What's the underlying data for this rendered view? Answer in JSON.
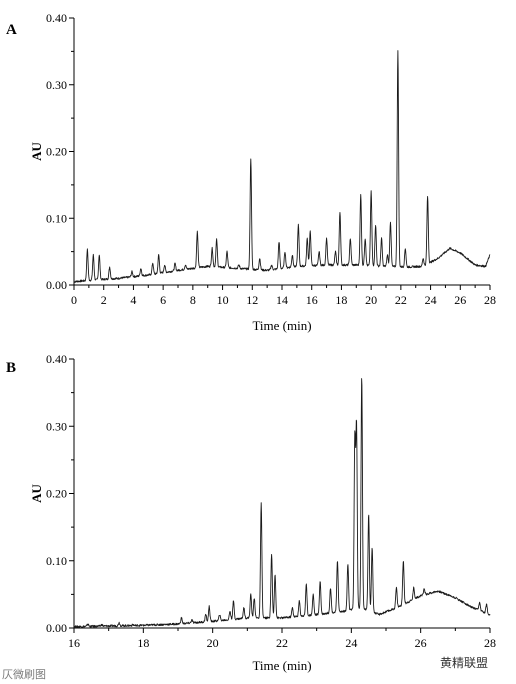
{
  "watermarks": {
    "left": "仄微刷图",
    "right": "黄精联盟"
  },
  "colors": {
    "trace": "#1a1a1a",
    "axis": "#000000"
  },
  "chart_data": [
    {
      "type": "line",
      "panel": "A",
      "xlabel": "Time (min)",
      "ylabel": "AU",
      "xlim": [
        0,
        28
      ],
      "ylim": [
        0,
        0.4
      ],
      "x_ticks": [
        0,
        2,
        4,
        6,
        8,
        10,
        12,
        14,
        16,
        18,
        20,
        22,
        24,
        26,
        28
      ],
      "y_ticks": [
        0.0,
        0.1,
        0.2,
        0.3,
        0.4
      ],
      "y_tick_labels": [
        "0.00",
        "0.10",
        "0.20",
        "0.30",
        "0.40"
      ],
      "baseline": [
        [
          0,
          0.005
        ],
        [
          1,
          0.007
        ],
        [
          3,
          0.01
        ],
        [
          5,
          0.015
        ],
        [
          7,
          0.022
        ],
        [
          9,
          0.028
        ],
        [
          11,
          0.025
        ],
        [
          13,
          0.022
        ],
        [
          15,
          0.028
        ],
        [
          17,
          0.03
        ],
        [
          19,
          0.03
        ],
        [
          21,
          0.028
        ],
        [
          22.5,
          0.027
        ],
        [
          23.5,
          0.028
        ],
        [
          24.5,
          0.04
        ],
        [
          25.3,
          0.055
        ],
        [
          26,
          0.048
        ],
        [
          27,
          0.03
        ],
        [
          27.7,
          0.028
        ],
        [
          28,
          0.045
        ]
      ],
      "peaks": [
        [
          0.9,
          0.053
        ],
        [
          1.3,
          0.045
        ],
        [
          1.7,
          0.045
        ],
        [
          2.4,
          0.027
        ],
        [
          3.9,
          0.02
        ],
        [
          4.5,
          0.025
        ],
        [
          5.3,
          0.033
        ],
        [
          5.7,
          0.045
        ],
        [
          6.1,
          0.03
        ],
        [
          6.8,
          0.032
        ],
        [
          7.5,
          0.03
        ],
        [
          8.3,
          0.08
        ],
        [
          9.3,
          0.055
        ],
        [
          9.6,
          0.068
        ],
        [
          10.3,
          0.05
        ],
        [
          11.1,
          0.03
        ],
        [
          11.9,
          0.19
        ],
        [
          12.5,
          0.04
        ],
        [
          13.3,
          0.03
        ],
        [
          13.8,
          0.065
        ],
        [
          14.2,
          0.05
        ],
        [
          14.7,
          0.045
        ],
        [
          15.1,
          0.09
        ],
        [
          15.7,
          0.07
        ],
        [
          15.9,
          0.08
        ],
        [
          16.5,
          0.05
        ],
        [
          17.0,
          0.07
        ],
        [
          17.6,
          0.05
        ],
        [
          17.9,
          0.11
        ],
        [
          18.6,
          0.07
        ],
        [
          19.3,
          0.135
        ],
        [
          19.6,
          0.07
        ],
        [
          20.0,
          0.14
        ],
        [
          20.3,
          0.09
        ],
        [
          20.7,
          0.07
        ],
        [
          21.1,
          0.045
        ],
        [
          21.3,
          0.095
        ],
        [
          21.8,
          0.35
        ],
        [
          22.3,
          0.055
        ],
        [
          23.5,
          0.04
        ],
        [
          23.8,
          0.133
        ]
      ]
    },
    {
      "type": "line",
      "panel": "B",
      "xlabel": "Time (min)",
      "ylabel": "AU",
      "xlim": [
        16,
        28
      ],
      "ylim": [
        0,
        0.4
      ],
      "x_ticks": [
        16,
        18,
        20,
        22,
        24,
        26,
        28
      ],
      "y_ticks": [
        0.0,
        0.1,
        0.2,
        0.3,
        0.4
      ],
      "y_tick_labels": [
        "0.00",
        "0.10",
        "0.20",
        "0.30",
        "0.40"
      ],
      "baseline": [
        [
          16,
          0.002
        ],
        [
          17,
          0.003
        ],
        [
          18,
          0.004
        ],
        [
          19,
          0.006
        ],
        [
          20,
          0.01
        ],
        [
          21,
          0.015
        ],
        [
          22,
          0.015
        ],
        [
          23,
          0.02
        ],
        [
          23.8,
          0.025
        ],
        [
          24.3,
          0.03
        ],
        [
          24.8,
          0.02
        ],
        [
          25.3,
          0.03
        ],
        [
          26,
          0.048
        ],
        [
          26.5,
          0.055
        ],
        [
          27,
          0.045
        ],
        [
          27.5,
          0.03
        ],
        [
          28,
          0.02
        ]
      ],
      "peaks": [
        [
          16.4,
          0.006
        ],
        [
          16.8,
          0.005
        ],
        [
          17.3,
          0.008
        ],
        [
          17.7,
          0.005
        ],
        [
          18.3,
          0.004
        ],
        [
          18.8,
          0.005
        ],
        [
          19.1,
          0.015
        ],
        [
          19.4,
          0.012
        ],
        [
          19.8,
          0.02
        ],
        [
          19.9,
          0.032
        ],
        [
          20.2,
          0.02
        ],
        [
          20.5,
          0.025
        ],
        [
          20.6,
          0.04
        ],
        [
          20.9,
          0.03
        ],
        [
          21.1,
          0.05
        ],
        [
          21.2,
          0.045
        ],
        [
          21.4,
          0.185
        ],
        [
          21.7,
          0.11
        ],
        [
          21.8,
          0.08
        ],
        [
          22.3,
          0.03
        ],
        [
          22.5,
          0.04
        ],
        [
          22.7,
          0.065
        ],
        [
          22.9,
          0.05
        ],
        [
          23.1,
          0.07
        ],
        [
          23.4,
          0.06
        ],
        [
          23.6,
          0.1
        ],
        [
          23.9,
          0.095
        ],
        [
          24.1,
          0.28
        ],
        [
          24.15,
          0.3
        ],
        [
          24.3,
          0.375
        ],
        [
          24.5,
          0.17
        ],
        [
          24.6,
          0.12
        ],
        [
          25.3,
          0.06
        ],
        [
          25.5,
          0.1
        ],
        [
          25.8,
          0.06
        ],
        [
          26.1,
          0.058
        ],
        [
          27.7,
          0.038
        ],
        [
          27.9,
          0.035
        ]
      ]
    }
  ]
}
